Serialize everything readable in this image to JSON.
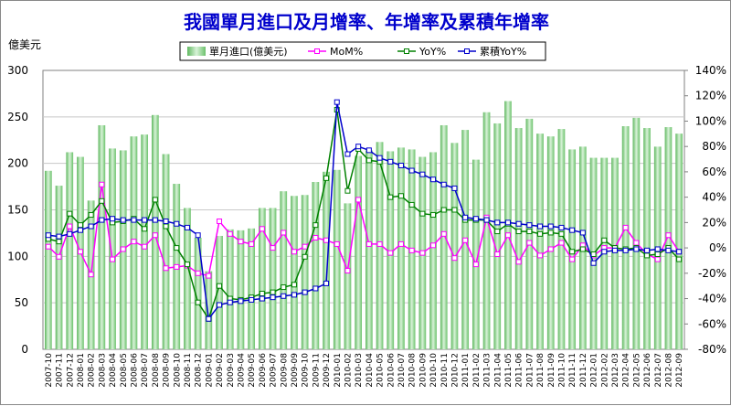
{
  "chart_data": {
    "type": "bar",
    "title": "我國單月進口及月增率、年增率及累積年增率",
    "left_axis_unit": "億美元",
    "left_axis": {
      "min": 0,
      "max": 300,
      "step": 50,
      "tick_labels": [
        "0",
        "50",
        "100",
        "150",
        "200",
        "250",
        "300"
      ]
    },
    "right_axis": {
      "min": -80,
      "max": 140,
      "step": 20,
      "tick_labels": [
        "-80%",
        "-60%",
        "-40%",
        "-20%",
        "0%",
        "20%",
        "40%",
        "60%",
        "80%",
        "100%",
        "120%",
        "140%"
      ]
    },
    "grid": "horizontal",
    "legend_position": "top",
    "categories": [
      "2007-10",
      "2007-11",
      "2007-12",
      "2008-01",
      "2008-02",
      "2008-03",
      "2008-04",
      "2008-05",
      "2008-06",
      "2008-07",
      "2008-08",
      "2008-09",
      "2008-10",
      "2008-11",
      "2008-12",
      "2009-01",
      "2009-02",
      "2009-03",
      "2009-04",
      "2009-05",
      "2009-06",
      "2009-07",
      "2009-08",
      "2009-09",
      "2009-10",
      "2009-11",
      "2009-12",
      "2010-01",
      "2010-02",
      "2010-03",
      "2010-04",
      "2010-05",
      "2010-06",
      "2010-07",
      "2010-08",
      "2010-09",
      "2010-10",
      "2010-11",
      "2010-12",
      "2011-01",
      "2011-02",
      "2011-03",
      "2011-04",
      "2011-05",
      "2011-06",
      "2011-07",
      "2011-08",
      "2011-09",
      "2011-10",
      "2011-11",
      "2011-12",
      "2012-01",
      "2012-02",
      "2012-03",
      "2012-04",
      "2012-05",
      "2012-06",
      "2012-07",
      "2012-08",
      "2012-09"
    ],
    "series": [
      {
        "name": "單月進口(億美元)",
        "type": "bar",
        "axis": "left",
        "color": "#8fd18f",
        "values": [
          192,
          176,
          212,
          207,
          160,
          241,
          216,
          214,
          229,
          231,
          252,
          210,
          178,
          152,
          120,
          84,
          122,
          129,
          128,
          130,
          152,
          152,
          170,
          165,
          166,
          180,
          191,
          193,
          157,
          208,
          214,
          223,
          213,
          217,
          215,
          207,
          212,
          241,
          222,
          236,
          204,
          255,
          243,
          267,
          238,
          248,
          232,
          229,
          237,
          215,
          218,
          206,
          206,
          206,
          240,
          249,
          238,
          218,
          239,
          232
        ]
      },
      {
        "name": "MoM%",
        "type": "line",
        "axis": "right",
        "color": "#ff00ff",
        "marker": "square",
        "values": [
          1,
          -7,
          17,
          -3,
          -21,
          50,
          -9,
          -1,
          5,
          1,
          10,
          -16,
          -15,
          -14,
          -20,
          -22,
          21,
          11,
          5,
          3,
          15,
          0,
          12,
          -3,
          1,
          8,
          6,
          3,
          -18,
          38,
          3,
          3,
          -4,
          3,
          -2,
          -4,
          2,
          11,
          -8,
          6,
          -13,
          24,
          -5,
          10,
          -11,
          4,
          -6,
          -1,
          4,
          -9,
          2,
          -6,
          0,
          0,
          16,
          4,
          -5,
          -9,
          10,
          -3
        ]
      },
      {
        "name": "YoY%",
        "type": "line",
        "axis": "right",
        "color": "#008000",
        "marker": "square",
        "values": [
          7,
          5,
          27,
          18,
          26,
          37,
          20,
          21,
          23,
          15,
          38,
          17,
          0,
          -13,
          -43,
          -56,
          -30,
          -40,
          -41,
          -39,
          -36,
          -35,
          -31,
          -29,
          -7,
          18,
          55,
          109,
          45,
          78,
          69,
          68,
          40,
          41,
          34,
          27,
          26,
          30,
          30,
          22,
          22,
          22,
          13,
          19,
          13,
          13,
          11,
          12,
          11,
          -3,
          -1,
          -5,
          6,
          0,
          -1,
          0,
          -6,
          -5,
          0,
          -9
        ]
      },
      {
        "name": "累積YoY%",
        "type": "line",
        "axis": "right",
        "color": "#0000cc",
        "marker": "square",
        "values": [
          10,
          9,
          11,
          14,
          17,
          22,
          23,
          22,
          22,
          22,
          22,
          21,
          19,
          16,
          10,
          -56,
          -45,
          -43,
          -42,
          -41,
          -40,
          -39,
          -38,
          -37,
          -35,
          -32,
          -28,
          115,
          74,
          80,
          77,
          71,
          68,
          65,
          61,
          58,
          54,
          50,
          47,
          24,
          23,
          22,
          20,
          20,
          19,
          18,
          17,
          17,
          16,
          14,
          12,
          -12,
          -3,
          -2,
          -2,
          -1,
          -2,
          -1,
          -2,
          -3
        ]
      }
    ]
  }
}
